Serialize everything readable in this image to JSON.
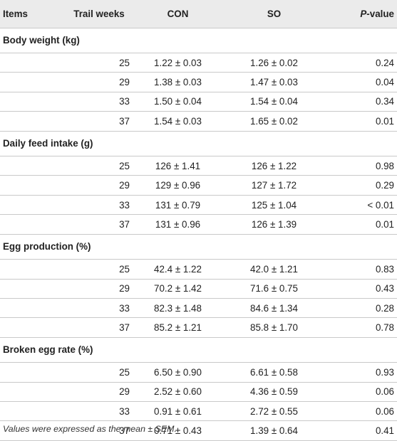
{
  "header": {
    "items": "Items",
    "trail_weeks": "Trail weeks",
    "con": "CON",
    "so": "SO",
    "p_letter": "P",
    "p_suffix": "-value"
  },
  "sections": [
    {
      "title": "Body weight (kg)",
      "rows": [
        {
          "week": "25",
          "con": "1.22 ± 0.03",
          "so": "1.26 ± 0.02",
          "p": "0.24"
        },
        {
          "week": "29",
          "con": "1.38 ± 0.03",
          "so": "1.47 ± 0.03",
          "p": "0.04"
        },
        {
          "week": "33",
          "con": "1.50 ± 0.04",
          "so": "1.54 ± 0.04",
          "p": "0.34"
        },
        {
          "week": "37",
          "con": "1.54 ± 0.03",
          "so": "1.65 ± 0.02",
          "p": "0.01"
        }
      ]
    },
    {
      "title": "Daily feed intake (g)",
      "rows": [
        {
          "week": "25",
          "con": "126 ± 1.41",
          "so": "126 ± 1.22",
          "p": "0.98"
        },
        {
          "week": "29",
          "con": "129 ± 0.96",
          "so": "127 ± 1.72",
          "p": "0.29"
        },
        {
          "week": "33",
          "con": "131 ± 0.79",
          "so": "125 ± 1.04",
          "p": "< 0.01"
        },
        {
          "week": "37",
          "con": "131 ± 0.96",
          "so": "126 ± 1.39",
          "p": "0.01"
        }
      ]
    },
    {
      "title": "Egg production (%)",
      "rows": [
        {
          "week": "25",
          "con": "42.4 ± 1.22",
          "so": "42.0 ± 1.21",
          "p": "0.83"
        },
        {
          "week": "29",
          "con": "70.2 ± 1.42",
          "so": "71.6 ± 0.75",
          "p": "0.43"
        },
        {
          "week": "33",
          "con": "82.3 ± 1.48",
          "so": "84.6 ± 1.34",
          "p": "0.28"
        },
        {
          "week": "37",
          "con": "85.2 ± 1.21",
          "so": "85.8 ± 1.70",
          "p": "0.78"
        }
      ]
    },
    {
      "title": "Broken egg rate (%)",
      "rows": [
        {
          "week": "25",
          "con": "6.50 ± 0.90",
          "so": "6.61 ± 0.58",
          "p": "0.93"
        },
        {
          "week": "29",
          "con": "2.52 ± 0.60",
          "so": "4.36 ± 0.59",
          "p": "0.06"
        },
        {
          "week": "33",
          "con": "0.91 ± 0.61",
          "so": "2.72 ± 0.55",
          "p": "0.06"
        },
        {
          "week": "37",
          "con": "0.71 ± 0.43",
          "so": "1.39 ± 0.64",
          "p": "0.41"
        }
      ]
    }
  ],
  "footnote": "Values were expressed as the mean ± SEM."
}
